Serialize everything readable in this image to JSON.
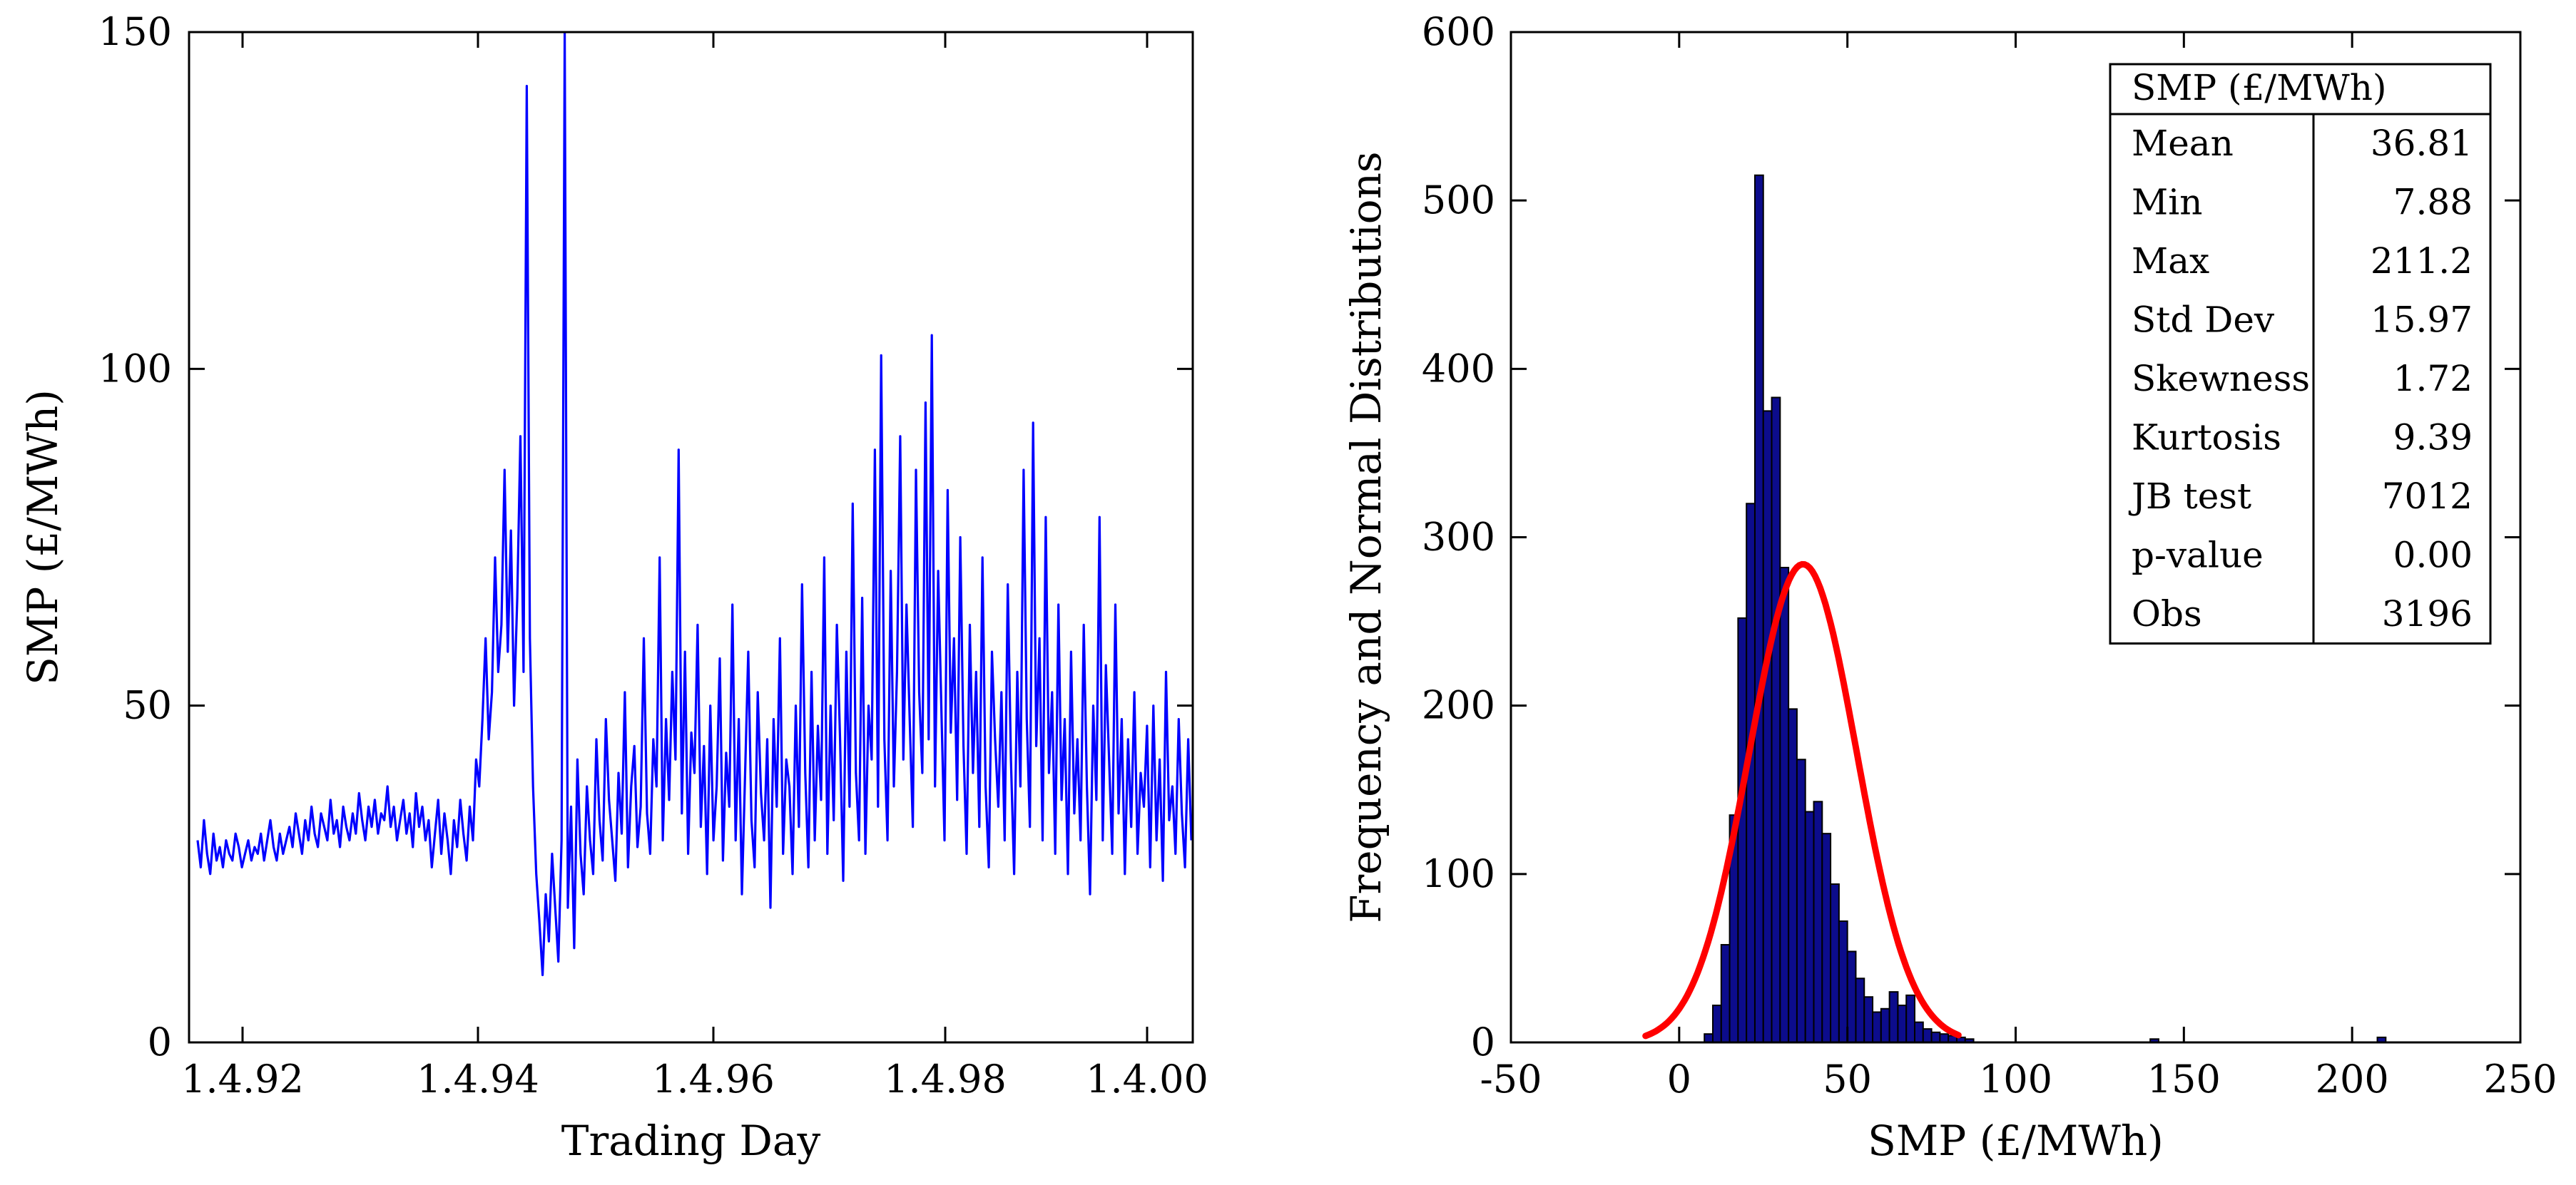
{
  "chart_data": [
    {
      "type": "line",
      "title": "",
      "xlabel": "Trading Day",
      "ylabel": "SMP (£/MWh)",
      "ylim": [
        0,
        150
      ],
      "yticks": [
        0,
        50,
        100,
        150
      ],
      "xticks": [
        "1.4.92",
        "1.4.94",
        "1.4.96",
        "1.4.98",
        "1.4.00"
      ],
      "color": "#0000ff",
      "series": [
        {
          "name": "SMP",
          "values": [
            30,
            26,
            33,
            28,
            25,
            31,
            27,
            29,
            26,
            30,
            28,
            27,
            31,
            29,
            26,
            28,
            30,
            27,
            29,
            28,
            31,
            27,
            30,
            33,
            29,
            27,
            31,
            28,
            30,
            32,
            29,
            34,
            31,
            28,
            33,
            30,
            35,
            31,
            29,
            34,
            32,
            30,
            36,
            31,
            33,
            29,
            35,
            32,
            30,
            34,
            31,
            37,
            33,
            30,
            35,
            32,
            36,
            31,
            34,
            33,
            38,
            32,
            35,
            30,
            33,
            36,
            31,
            34,
            29,
            37,
            32,
            35,
            30,
            33,
            26,
            31,
            36,
            28,
            34,
            30,
            25,
            33,
            29,
            36,
            31,
            27,
            35,
            30,
            42,
            38,
            48,
            60,
            45,
            52,
            72,
            55,
            62,
            85,
            58,
            76,
            50,
            66,
            90,
            55,
            142,
            60,
            38,
            25,
            18,
            10,
            22,
            15,
            28,
            20,
            12,
            30,
            150,
            20,
            35,
            14,
            42,
            28,
            22,
            38,
            30,
            25,
            45,
            33,
            27,
            48,
            36,
            30,
            24,
            40,
            31,
            52,
            26,
            38,
            44,
            29,
            35,
            60,
            34,
            28,
            45,
            38,
            72,
            30,
            48,
            36,
            55,
            42,
            88,
            34,
            58,
            28,
            46,
            40,
            62,
            32,
            44,
            25,
            50,
            30,
            38,
            57,
            27,
            43,
            35,
            65,
            30,
            48,
            22,
            40,
            58,
            33,
            26,
            52,
            37,
            30,
            45,
            20,
            48,
            35,
            60,
            28,
            42,
            38,
            25,
            50,
            32,
            68,
            40,
            26,
            55,
            30,
            47,
            36,
            72,
            28,
            50,
            33,
            62,
            45,
            24,
            58,
            35,
            80,
            40,
            30,
            66,
            28,
            50,
            42,
            88,
            35,
            102,
            45,
            30,
            70,
            38,
            55,
            90,
            42,
            65,
            48,
            32,
            85,
            52,
            40,
            95,
            45,
            105,
            38,
            70,
            50,
            30,
            82,
            46,
            60,
            36,
            75,
            44,
            28,
            62,
            40,
            55,
            32,
            72,
            38,
            26,
            58,
            45,
            35,
            52,
            30,
            68,
            42,
            25,
            55,
            38,
            85,
            48,
            32,
            92,
            44,
            60,
            30,
            78,
            40,
            52,
            28,
            65,
            36,
            48,
            25,
            58,
            34,
            45,
            30,
            62,
            38,
            22,
            50,
            36,
            78,
            30,
            56,
            42,
            28,
            65,
            34,
            48,
            25,
            45,
            32,
            52,
            28,
            40,
            35,
            47,
            26,
            50,
            30,
            42,
            24,
            55,
            33,
            38,
            28,
            48,
            34,
            26,
            45,
            30
          ]
        }
      ]
    },
    {
      "type": "bar",
      "title": "",
      "xlabel": "SMP (£/MWh)",
      "ylabel": "Frequency and Normal Distributions",
      "xlim": [
        -50,
        250
      ],
      "ylim": [
        0,
        600
      ],
      "xticks": [
        -50,
        0,
        50,
        100,
        150,
        200,
        250
      ],
      "yticks": [
        0,
        100,
        200,
        300,
        400,
        500,
        600
      ],
      "bin_width": 2.5,
      "bins_start": 7.5,
      "bar_color": "#0c0c8c",
      "counts": [
        5,
        22,
        58,
        135,
        252,
        320,
        515,
        375,
        383,
        282,
        198,
        168,
        137,
        143,
        124,
        94,
        72,
        54,
        38,
        27,
        18,
        20,
        30,
        22,
        28,
        12,
        8,
        6,
        5,
        4,
        3,
        2
      ],
      "outlier_bins": [
        {
          "x": 140,
          "count": 2
        },
        {
          "x": 207.5,
          "count": 3
        }
      ],
      "normal_curve": {
        "mean": 36.81,
        "std": 15.97,
        "peak": 284,
        "xmin": -10,
        "xmax": 83,
        "color": "#ff0000"
      },
      "stats_table": {
        "header": "SMP (£/MWh)",
        "rows": [
          {
            "label": "Mean",
            "value": "36.81"
          },
          {
            "label": "Min",
            "value": "7.88"
          },
          {
            "label": "Max",
            "value": "211.2"
          },
          {
            "label": "Std Dev",
            "value": "15.97"
          },
          {
            "label": "Skewness",
            "value": "1.72"
          },
          {
            "label": "Kurtosis",
            "value": "9.39"
          },
          {
            "label": "JB test",
            "value": "7012"
          },
          {
            "label": "p-value",
            "value": "0.00"
          },
          {
            "label": "Obs",
            "value": "3196"
          }
        ]
      }
    }
  ]
}
